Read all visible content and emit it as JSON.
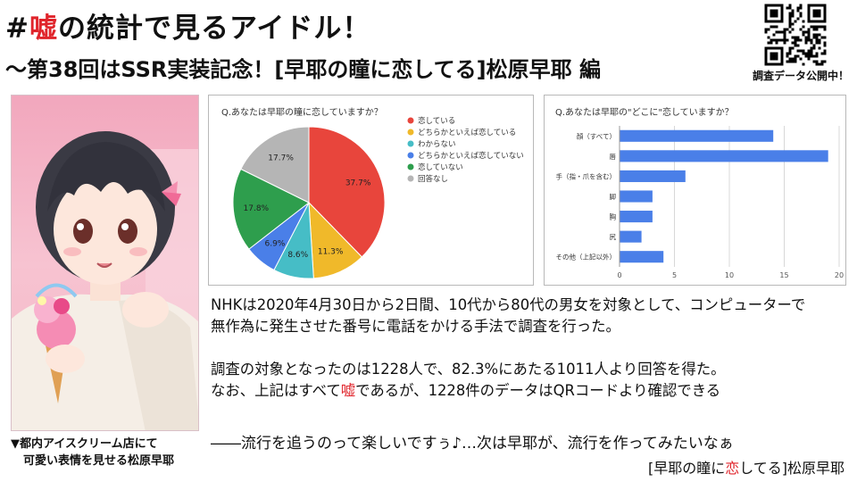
{
  "header": {
    "title_prefix": "#",
    "title_highlight": "嘘",
    "title_suffix": "の統計で見るアイドル！",
    "subtitle": "～第38回はSSR実装記念！[早耶の瞳に恋してる]松原早耶 編"
  },
  "qr": {
    "caption": "調査データ公開中！"
  },
  "photo": {
    "caption_line1": "▼都内アイスクリーム店にて",
    "caption_line2": "可愛い表情を見せる松原早耶"
  },
  "chart_data": [
    {
      "type": "pie",
      "title": "Q.あなたは早耶の瞳に恋していますか？",
      "categories": [
        "恋している",
        "どちらかといえば恋している",
        "わからない",
        "どちらかといえば恋していない",
        "恋していない",
        "回答なし"
      ],
      "values": [
        37.7,
        11.3,
        8.6,
        6.9,
        17.8,
        17.7
      ],
      "labels": [
        "37.7%",
        "11.3%",
        "8.6%",
        "6.9%",
        "17.8%",
        "17.7%"
      ],
      "colors": [
        "#e8453c",
        "#f0b92a",
        "#46bdc6",
        "#4a7fe8",
        "#2e9e4d",
        "#b5b5b5"
      ],
      "legend": "right"
    },
    {
      "type": "bar",
      "orientation": "horizontal",
      "title": "Q.あなたは早耶の\"どこに\"恋していますか？",
      "categories": [
        "顔（すべて）",
        "唇",
        "手（指・爪を含む）",
        "脚",
        "胸",
        "尻",
        "その他（上記以外）"
      ],
      "values": [
        14,
        19,
        6,
        3,
        3,
        2,
        4
      ],
      "xlim": [
        0,
        20
      ],
      "ticks": [
        "0",
        "5",
        "10",
        "15",
        "20"
      ],
      "color": "#4a7fe8",
      "grid": true
    }
  ],
  "body": {
    "line1": "NHKは2020年4月30日から2日間、10代から80代の男女を対象として、コンピューターで",
    "line2": "無作為に発生させた番号に電話をかける手法で調査を行った。",
    "line3": "調査の対象となったのは1228人で、82.3%にあたる1011人より回答を得た。",
    "line4_prefix": "なお、上記はすべて",
    "line4_highlight": "嘘",
    "line4_suffix": "であるが、1228件のデータはQRコードより確認できる",
    "closing": "――流行を追うのって楽しいですぅ♪…次は早耶が、流行を作ってみたいなぁ",
    "signature_prefix": "[早耶の瞳に",
    "signature_highlight": "恋",
    "signature_suffix": "してる]松原早耶"
  }
}
